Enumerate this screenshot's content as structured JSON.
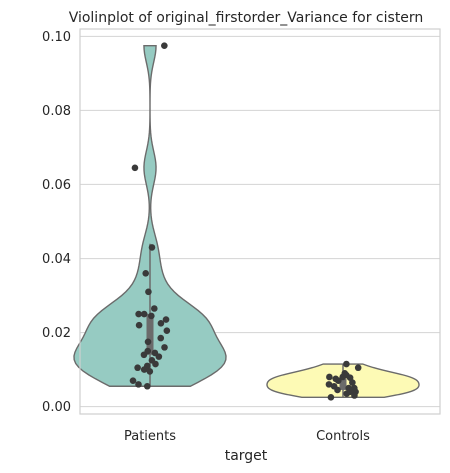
{
  "chart_data": {
    "type": "violin",
    "title": "Violinplot of original_firstorder_Variance for cistern",
    "xlabel": "target",
    "ylabel": "",
    "categories": [
      "Patients",
      "Controls"
    ],
    "ylim": [
      -0.002,
      0.102
    ],
    "yticks": [
      "0.00",
      "0.02",
      "0.04",
      "0.06",
      "0.08",
      "0.10"
    ],
    "grid": true,
    "colors": {
      "Patients": "#96cbc2",
      "Controls": "#fdfab5",
      "points": "#3a3a3a",
      "outline": "#6b6b6b",
      "grid": "#d9d9d9"
    },
    "series": [
      {
        "category": "Patients",
        "box": {
          "q1": 0.014,
          "median": 0.019,
          "q3": 0.025,
          "whisker_low": 0.0055,
          "whisker_high": 0.044
        },
        "points": [
          0.0975,
          0.0645,
          0.043,
          0.036,
          0.031,
          0.0265,
          0.025,
          0.025,
          0.0245,
          0.0235,
          0.0225,
          0.022,
          0.0205,
          0.0185,
          0.0175,
          0.016,
          0.015,
          0.0145,
          0.014,
          0.0135,
          0.0125,
          0.0115,
          0.011,
          0.0105,
          0.01,
          0.0095,
          0.007,
          0.006,
          0.0055
        ]
      },
      {
        "category": "Controls",
        "box": {
          "q1": 0.0045,
          "median": 0.0058,
          "q3": 0.0075,
          "whisker_low": 0.0025,
          "whisker_high": 0.0115
        },
        "points": [
          0.0115,
          0.0105,
          0.009,
          0.0085,
          0.008,
          0.008,
          0.0078,
          0.0075,
          0.007,
          0.0065,
          0.006,
          0.0055,
          0.005,
          0.005,
          0.0045,
          0.004,
          0.004,
          0.0035,
          0.003,
          0.0025
        ]
      }
    ]
  }
}
